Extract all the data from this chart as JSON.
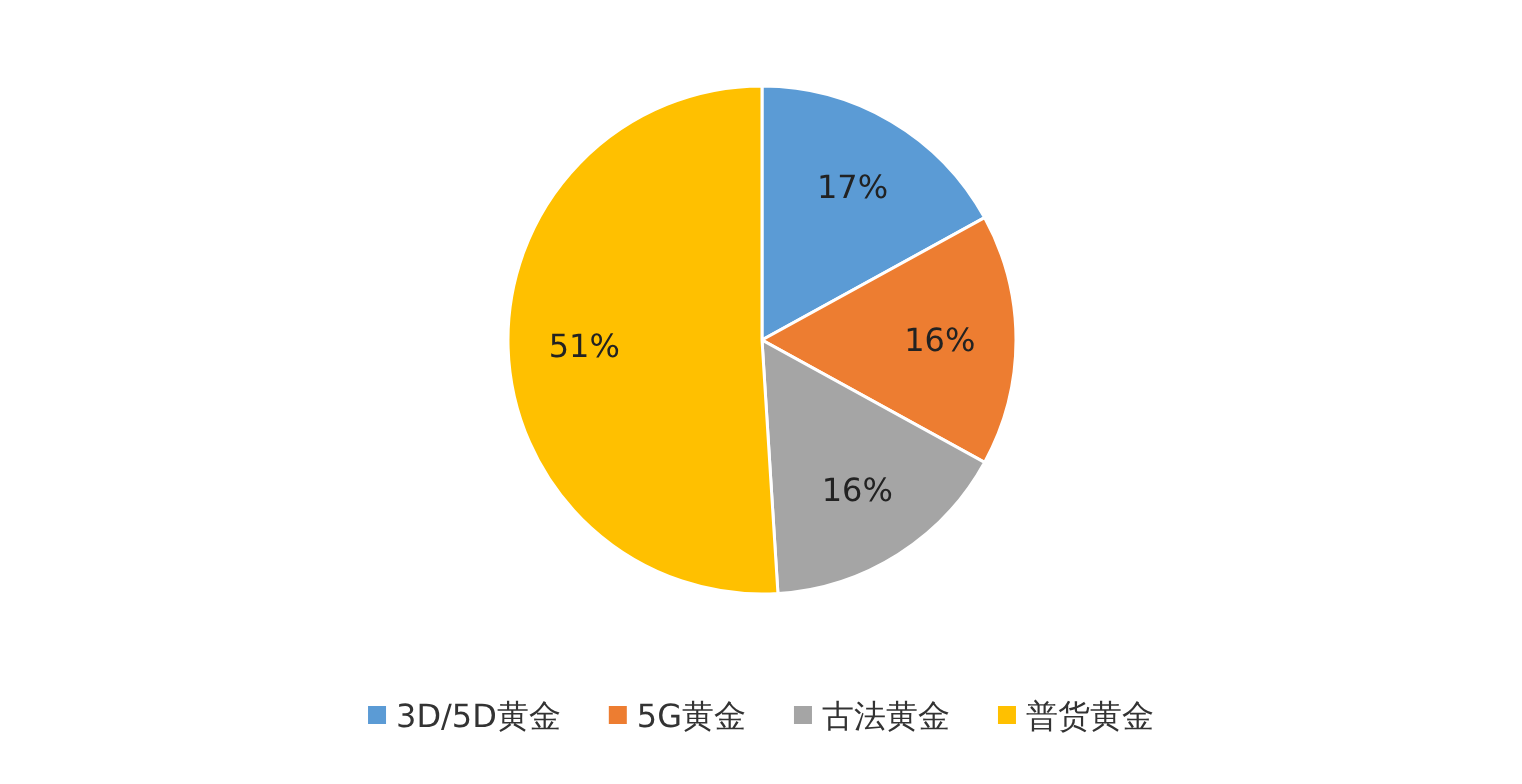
{
  "chart_data": {
    "type": "pie",
    "categories": [
      "3D/5D黄金",
      "5G黄金",
      "古法黄金",
      "普货黄金"
    ],
    "values": [
      17,
      16,
      16,
      51
    ],
    "colors": [
      "#5b9bd5",
      "#ed7d31",
      "#a5a5a5",
      "#ffc000"
    ],
    "value_labels": [
      "17%",
      "16%",
      "16%",
      "51%"
    ],
    "legend": "bottom"
  }
}
